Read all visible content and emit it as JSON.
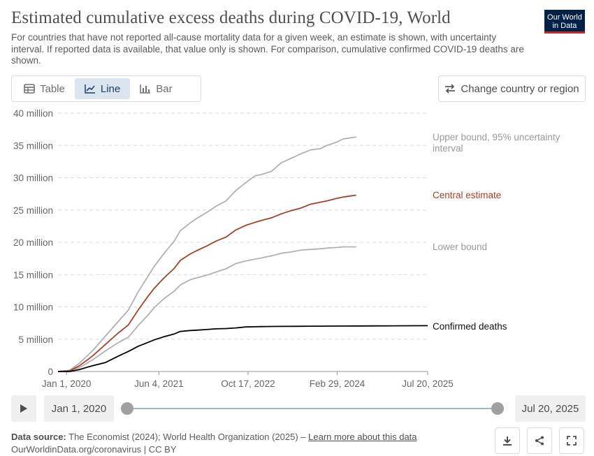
{
  "header": {
    "title": "Estimated cumulative excess deaths during COVID-19, World",
    "subtitle": "For countries that have not reported all-cause mortality data for a given week, an estimate is shown, with uncertainty interval. If reported data is available, that value only is shown. For comparison, cumulative confirmed COVID-19 deaths are shown.",
    "logo_line1": "Our World",
    "logo_line2": "in Data"
  },
  "tabs": [
    {
      "label": "Table",
      "icon": "table-icon"
    },
    {
      "label": "Line",
      "icon": "line-chart-icon",
      "active": true
    },
    {
      "label": "Bar",
      "icon": "bar-chart-icon"
    }
  ],
  "change_button": {
    "label": "Change country or region",
    "icon": "swap-arrows-icon"
  },
  "chart_data": {
    "type": "line",
    "title": "Estimated cumulative excess deaths during COVID-19, World",
    "y_unit": "million",
    "ylim": [
      0,
      40
    ],
    "yticks": [
      0,
      5,
      10,
      15,
      20,
      25,
      30,
      35,
      40
    ],
    "ytick_labels": [
      "0",
      "5 million",
      "10 million",
      "15 million",
      "20 million",
      "25 million",
      "30 million",
      "35 million",
      "40 million"
    ],
    "xlim": [
      2019.87,
      2025.55
    ],
    "xticks": [
      2020.0,
      2021.42,
      2022.79,
      2024.16,
      2025.55
    ],
    "xtick_labels": [
      "Jan 1, 2020",
      "Jun 4, 2021",
      "Oct 17, 2022",
      "Feb 29, 2024",
      "Jul 20, 2025"
    ],
    "grid": true,
    "series": [
      {
        "name": "Upper bound, 95% uncertainty interval",
        "label_lines": [
          "Upper bound, 95% uncertainty",
          "interval"
        ],
        "color": "#b1b1b1",
        "x": [
          2019.87,
          2020.05,
          2020.2,
          2020.4,
          2020.6,
          2020.8,
          2020.95,
          2021.1,
          2021.25,
          2021.35,
          2021.5,
          2021.65,
          2021.75,
          2021.9,
          2022.0,
          2022.15,
          2022.3,
          2022.45,
          2022.6,
          2022.75,
          2022.9,
          2023.0,
          2023.15,
          2023.3,
          2023.45,
          2023.6,
          2023.75,
          2023.9,
          2024.0,
          2024.15,
          2024.25,
          2024.45
        ],
        "y": [
          0,
          0.2,
          1.3,
          3.2,
          5.5,
          7.8,
          9.5,
          12.3,
          14.7,
          16.3,
          18.3,
          20.1,
          21.8,
          23.0,
          23.7,
          24.6,
          25.6,
          26.4,
          28.0,
          29.2,
          30.3,
          30.5,
          31.0,
          32.3,
          33.0,
          33.7,
          34.3,
          34.5,
          35.0,
          35.5,
          36.0,
          36.3
        ]
      },
      {
        "name": "Central estimate",
        "label_lines": [
          "Central estimate"
        ],
        "color": "#a2432a",
        "x": [
          2019.87,
          2020.05,
          2020.2,
          2020.4,
          2020.6,
          2020.8,
          2020.95,
          2021.1,
          2021.25,
          2021.35,
          2021.5,
          2021.65,
          2021.75,
          2021.9,
          2022.0,
          2022.15,
          2022.3,
          2022.45,
          2022.6,
          2022.75,
          2022.9,
          2023.0,
          2023.15,
          2023.3,
          2023.45,
          2023.6,
          2023.75,
          2023.9,
          2024.0,
          2024.15,
          2024.25,
          2024.45
        ],
        "y": [
          0,
          0.1,
          0.9,
          2.4,
          4.2,
          6.0,
          7.2,
          9.5,
          11.6,
          12.9,
          14.5,
          15.9,
          17.2,
          18.2,
          18.7,
          19.4,
          20.2,
          20.8,
          21.9,
          22.6,
          23.1,
          23.4,
          23.8,
          24.4,
          24.9,
          25.3,
          25.9,
          26.2,
          26.4,
          26.8,
          27.0,
          27.3
        ]
      },
      {
        "name": "Lower bound",
        "label_lines": [
          "Lower bound"
        ],
        "color": "#b1b1b1",
        "x": [
          2019.87,
          2020.05,
          2020.2,
          2020.4,
          2020.6,
          2020.8,
          2020.95,
          2021.1,
          2021.25,
          2021.35,
          2021.5,
          2021.65,
          2021.75,
          2021.9,
          2022.0,
          2022.15,
          2022.3,
          2022.45,
          2022.6,
          2022.75,
          2022.9,
          2023.0,
          2023.15,
          2023.3,
          2023.45,
          2023.6,
          2023.75,
          2023.9,
          2024.0,
          2024.15,
          2024.25,
          2024.45
        ],
        "y": [
          0,
          0.05,
          0.6,
          1.8,
          3.2,
          4.5,
          5.3,
          7.1,
          8.7,
          9.9,
          11.3,
          12.4,
          13.4,
          14.2,
          14.5,
          14.9,
          15.4,
          15.9,
          16.7,
          17.1,
          17.4,
          17.6,
          17.9,
          18.3,
          18.5,
          18.8,
          18.9,
          19.0,
          19.1,
          19.2,
          19.3,
          19.3
        ]
      },
      {
        "name": "Confirmed deaths",
        "label_lines": [
          "Confirmed deaths"
        ],
        "color": "#000000",
        "x": [
          2019.87,
          2020.05,
          2020.2,
          2020.4,
          2020.6,
          2020.8,
          2020.95,
          2021.1,
          2021.25,
          2021.35,
          2021.5,
          2021.65,
          2021.75,
          2021.9,
          2022.0,
          2022.15,
          2022.3,
          2022.45,
          2022.6,
          2022.75,
          2022.9,
          2023.0,
          2023.15,
          2023.3,
          2023.5,
          2023.75,
          2024.0,
          2024.25,
          2024.5,
          2024.75,
          2025.0,
          2025.25,
          2025.55
        ],
        "y": [
          0,
          0,
          0.3,
          0.9,
          1.4,
          2.4,
          3.1,
          3.9,
          4.5,
          4.9,
          5.4,
          5.8,
          6.2,
          6.35,
          6.4,
          6.5,
          6.6,
          6.65,
          6.75,
          6.9,
          6.93,
          6.95,
          6.97,
          6.98,
          7.0,
          7.02,
          7.03,
          7.04,
          7.05,
          7.06,
          7.07,
          7.08,
          7.09
        ]
      }
    ]
  },
  "timeline": {
    "start_date": "Jan 1, 2020",
    "end_date": "Jul 20, 2025",
    "play_icon": "play-icon"
  },
  "footer": {
    "source_label": "Data source:",
    "source_text": "The Economist (2024); World Health Organization (2025) –",
    "learn_more": "Learn more about this data",
    "url_line": "OurWorldinData.org/coronavirus | CC BY"
  },
  "actions": [
    {
      "name": "download-button",
      "icon": "download-icon"
    },
    {
      "name": "share-button",
      "icon": "share-icon"
    },
    {
      "name": "fullscreen-button",
      "icon": "fullscreen-icon"
    }
  ]
}
